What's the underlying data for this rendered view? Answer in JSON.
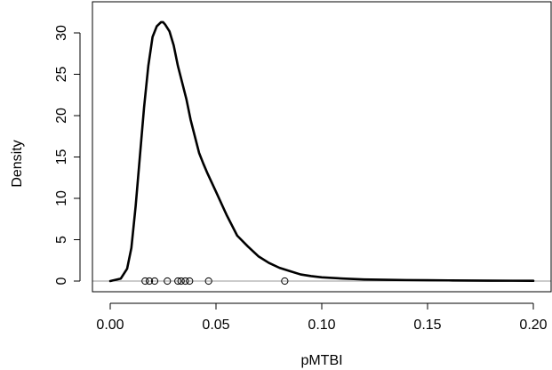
{
  "chart_data": {
    "type": "line",
    "title": "",
    "xlabel": "pMTBI",
    "ylabel": "Density",
    "xlim": [
      0.0,
      0.2
    ],
    "ylim": [
      0,
      32
    ],
    "x_ticks": [
      0.0,
      0.05,
      0.1,
      0.15,
      0.2
    ],
    "x_tick_labels": [
      "0.00",
      "0.05",
      "0.10",
      "0.15",
      "0.20"
    ],
    "y_ticks": [
      0,
      5,
      10,
      15,
      20,
      25,
      30
    ],
    "y_tick_labels": [
      "0",
      "5",
      "10",
      "15",
      "20",
      "25",
      "30"
    ],
    "grid": false,
    "baseline_y": 0,
    "series": [
      {
        "x": [
          0.0,
          0.005,
          0.008,
          0.01,
          0.012,
          0.014,
          0.016,
          0.018,
          0.02,
          0.022,
          0.024,
          0.025,
          0.026,
          0.028,
          0.03,
          0.032,
          0.034,
          0.036,
          0.038,
          0.04,
          0.042,
          0.044,
          0.046,
          0.05,
          0.055,
          0.06,
          0.065,
          0.07,
          0.075,
          0.08,
          0.085,
          0.09,
          0.095,
          0.1,
          0.11,
          0.12,
          0.13,
          0.14,
          0.15,
          0.16,
          0.17,
          0.18,
          0.19,
          0.2
        ],
        "y": [
          0.0,
          0.3,
          1.5,
          4.0,
          9.0,
          15.0,
          21.0,
          26.0,
          29.5,
          30.8,
          31.3,
          31.3,
          31.0,
          30.2,
          28.5,
          26.0,
          24.0,
          22.0,
          19.5,
          17.5,
          15.5,
          14.2,
          13.0,
          10.8,
          8.0,
          5.5,
          4.2,
          3.0,
          2.2,
          1.6,
          1.2,
          0.8,
          0.6,
          0.45,
          0.3,
          0.2,
          0.15,
          0.12,
          0.1,
          0.08,
          0.06,
          0.05,
          0.04,
          0.03
        ]
      }
    ],
    "rug_points": [
      0.0165,
      0.0185,
      0.021,
      0.027,
      0.032,
      0.0335,
      0.0355,
      0.0375,
      0.0465,
      0.0825
    ]
  }
}
